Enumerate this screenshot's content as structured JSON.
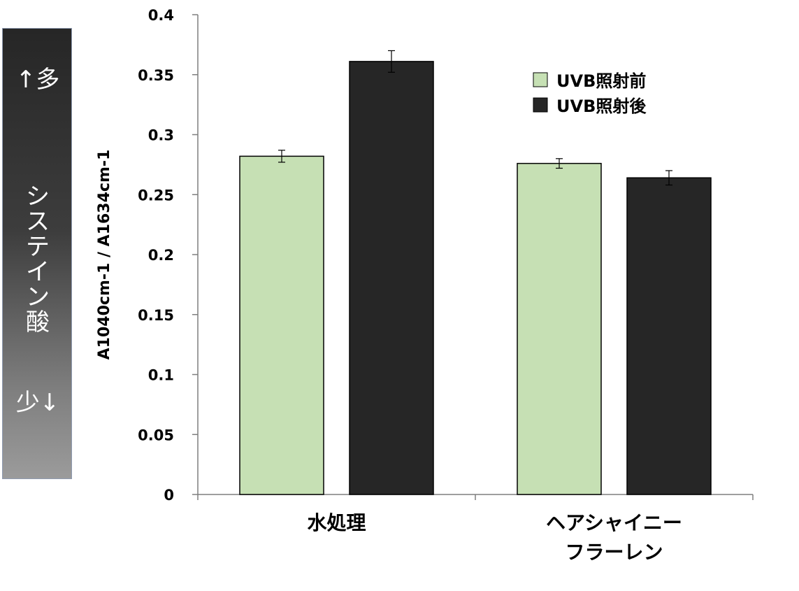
{
  "side_scale": {
    "top_label": "↑多",
    "middle_label": [
      "シ",
      "ス",
      "テ",
      "イ",
      "ン",
      "酸"
    ],
    "bottom_label": "少↓"
  },
  "chart_data": {
    "type": "bar",
    "categories": [
      [
        "水処理"
      ],
      [
        "ヘアシャイニー",
        "フラーレン"
      ]
    ],
    "series": [
      {
        "name": "UVB照射前",
        "values": [
          0.282,
          0.276
        ],
        "errors": [
          0.005,
          0.004
        ],
        "color": "#c6e0b4"
      },
      {
        "name": "UVB照射後",
        "values": [
          0.361,
          0.264
        ],
        "errors": [
          0.009,
          0.006
        ],
        "color": "#262626"
      }
    ],
    "ylabel": "A1040cm-1 / A1634cm-1",
    "xlabel": "",
    "ylim": [
      0,
      0.4
    ],
    "yticks": [
      "0",
      "0.05",
      "0.1",
      "0.15",
      "0.2",
      "0.25",
      "0.3",
      "0.35",
      "0.4"
    ],
    "grid": false,
    "legend_position": "top-right"
  }
}
